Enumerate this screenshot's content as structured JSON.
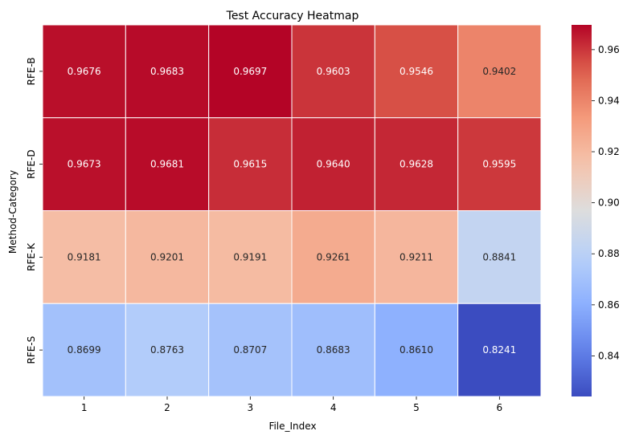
{
  "chart_data": {
    "type": "heatmap",
    "title": "Test Accuracy Heatmap",
    "xlabel": "File_Index",
    "ylabel": "Method-Category",
    "x_categories": [
      "1",
      "2",
      "3",
      "4",
      "5",
      "6"
    ],
    "y_categories": [
      "RFE-B",
      "RFE-D",
      "RFE-K",
      "RFE-S"
    ],
    "values": [
      [
        0.9676,
        0.9683,
        0.9697,
        0.9603,
        0.9546,
        0.9402
      ],
      [
        0.9673,
        0.9681,
        0.9615,
        0.964,
        0.9628,
        0.9595
      ],
      [
        0.9181,
        0.9201,
        0.9191,
        0.9261,
        0.9211,
        0.8841
      ],
      [
        0.8699,
        0.8763,
        0.8707,
        0.8683,
        0.861,
        0.8241
      ]
    ],
    "colormap": "coolwarm",
    "vmin": 0.8241,
    "vmax": 0.9697,
    "colorbar_ticks": [
      "0.84",
      "0.86",
      "0.88",
      "0.90",
      "0.92",
      "0.94",
      "0.96"
    ]
  }
}
